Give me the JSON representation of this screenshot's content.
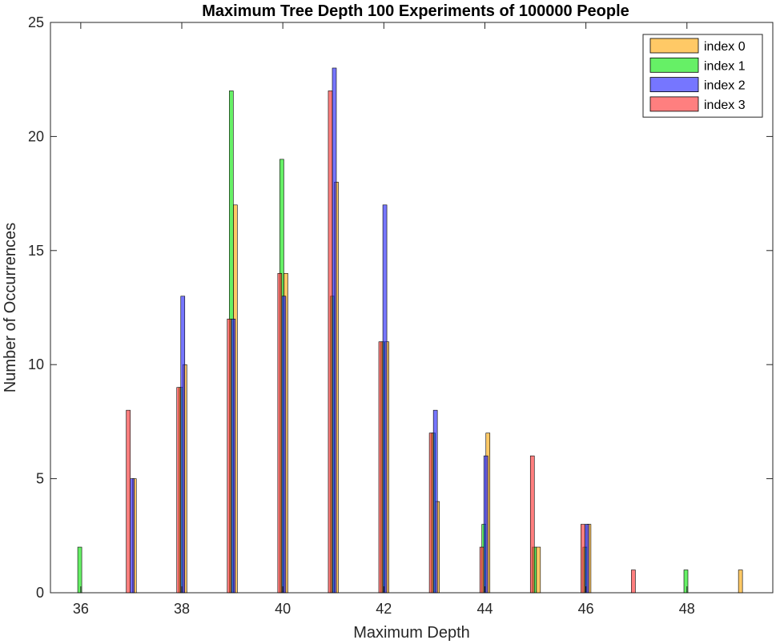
{
  "chart_data": {
    "type": "bar",
    "title": "Maximum Tree Depth 100 Experiments of 100000 People",
    "xlabel": "Maximum Depth",
    "ylabel": "Number of Occurrences",
    "xlim": [
      35.4,
      49.7
    ],
    "ylim": [
      0,
      25
    ],
    "xticks": [
      36,
      38,
      40,
      42,
      44,
      46,
      48
    ],
    "yticks": [
      0,
      5,
      10,
      15,
      20,
      25
    ],
    "grid": false,
    "legend_position": "top-right",
    "series": [
      {
        "name": "index 0",
        "color": "#ffa500",
        "x": [
          37,
          38,
          39,
          40,
          41,
          42,
          43,
          44,
          45,
          46,
          49
        ],
        "values": [
          5,
          10,
          17,
          14,
          18,
          11,
          4,
          7,
          2,
          3,
          1
        ]
      },
      {
        "name": "index 1",
        "color": "#00e600",
        "x": [
          36,
          38,
          39,
          40,
          41,
          42,
          43,
          44,
          45,
          46,
          48
        ],
        "values": [
          2,
          9,
          22,
          19,
          13,
          11,
          7,
          3,
          2,
          2,
          1
        ]
      },
      {
        "name": "index 2",
        "color": "#1a1aff",
        "x": [
          37,
          38,
          39,
          40,
          41,
          42,
          43,
          44,
          46
        ],
        "values": [
          5,
          13,
          12,
          13,
          23,
          17,
          8,
          6,
          3
        ]
      },
      {
        "name": "index 3",
        "color": "#ff2a2a",
        "x": [
          37,
          38,
          39,
          40,
          41,
          42,
          43,
          44,
          45,
          46,
          47
        ],
        "values": [
          8,
          9,
          12,
          14,
          22,
          11,
          7,
          2,
          6,
          3,
          1
        ]
      }
    ]
  }
}
